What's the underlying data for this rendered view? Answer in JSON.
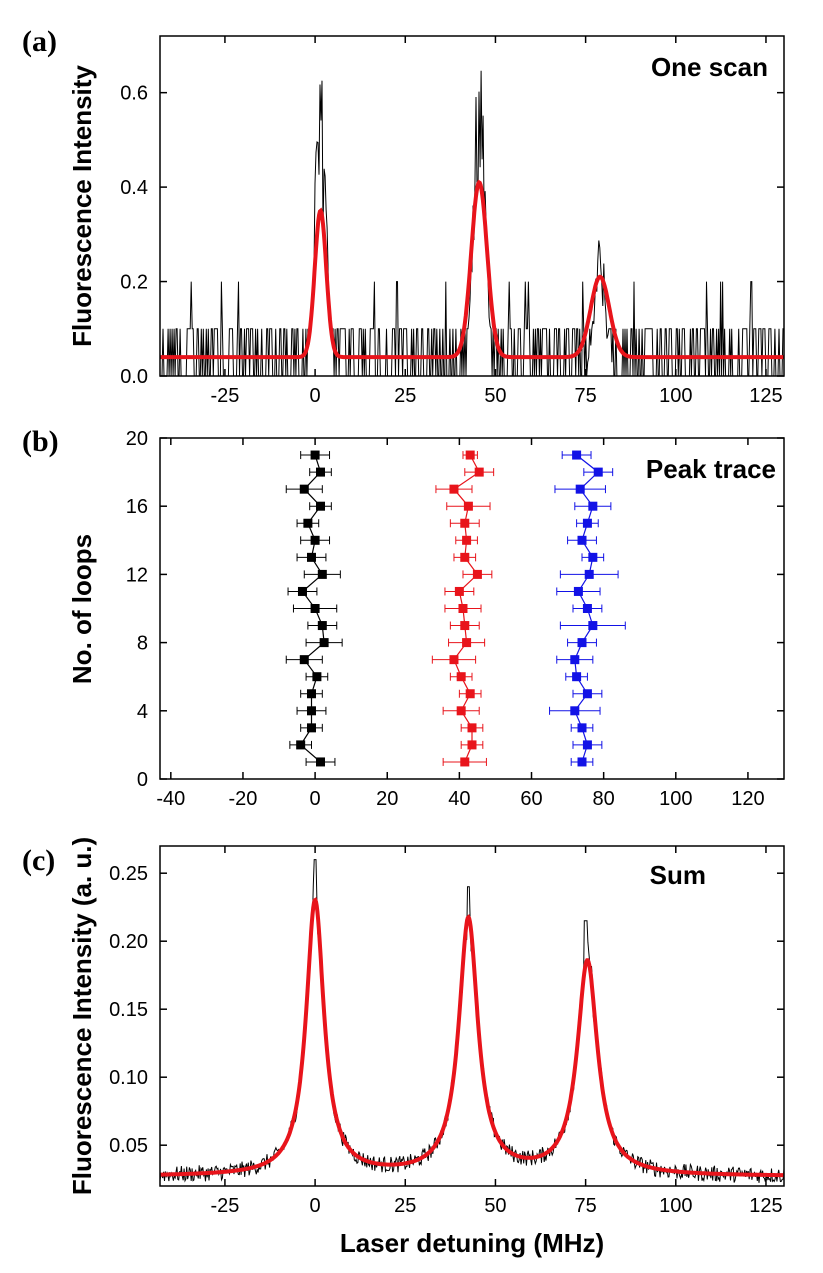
{
  "chart_data": [
    {
      "panel_label": "(a)",
      "type": "line",
      "annotation": "One scan",
      "ylabel": "Fluorescence Intensity",
      "xlim": [
        -43,
        130
      ],
      "ylim": [
        0.0,
        0.72
      ],
      "xticks": [
        -25,
        0,
        25,
        50,
        75,
        100,
        125
      ],
      "yticks": [
        0.0,
        0.2,
        0.4,
        0.6
      ],
      "ytick_labels": [
        "0.0",
        "0.2",
        "0.4",
        "0.6"
      ],
      "baseline": 0.04,
      "noise_levels": [
        0.0,
        0.1
      ],
      "series": [
        {
          "color": "#000000",
          "style": "noisy data",
          "peaks": [
            {
              "center": 1.5,
              "max": 0.65
            },
            {
              "center": 45.5,
              "max": 0.7
            },
            {
              "center": 79,
              "max": 0.3
            }
          ]
        },
        {
          "color": "#e8141b",
          "style": "Gaussian fit",
          "peaks": [
            {
              "center": 1.5,
              "height": 0.35,
              "sigma": 1.6
            },
            {
              "center": 45.5,
              "height": 0.41,
              "sigma": 2.2
            },
            {
              "center": 79,
              "height": 0.21,
              "sigma": 2.6
            }
          ]
        }
      ]
    },
    {
      "panel_label": "(b)",
      "type": "scatter",
      "annotation": "Peak trace",
      "ylabel": "No. of loops",
      "xlim": [
        -43,
        130
      ],
      "ylim": [
        0,
        20
      ],
      "xticks": [
        -40,
        -20,
        0,
        20,
        40,
        60,
        80,
        100,
        120
      ],
      "yticks": [
        0,
        4,
        8,
        12,
        16,
        20
      ],
      "y": [
        1,
        2,
        3,
        4,
        5,
        6,
        7,
        8,
        9,
        10,
        11,
        12,
        13,
        14,
        15,
        16,
        17,
        18,
        19
      ],
      "series": [
        {
          "color": "#000000",
          "x": [
            1.5,
            -4,
            -1,
            -1,
            -1,
            0.5,
            -3,
            2.5,
            2,
            0,
            -3.5,
            2,
            -1,
            0,
            -2,
            1.5,
            -3,
            1.5,
            0
          ],
          "xerr": [
            4,
            3,
            3,
            4,
            3,
            3,
            5,
            5,
            4,
            6,
            4,
            5,
            4,
            4,
            3,
            3,
            5,
            3,
            4
          ]
        },
        {
          "color": "#e8141b",
          "x": [
            41.5,
            43.5,
            43.5,
            40.5,
            43,
            40.5,
            38.5,
            42,
            41.5,
            41,
            40,
            45,
            41.5,
            42,
            41.5,
            42.5,
            38.5,
            45.5,
            43
          ],
          "xerr": [
            6,
            3,
            3,
            5,
            3,
            3,
            6,
            5,
            4,
            5,
            4,
            4,
            3,
            3,
            4,
            6,
            5,
            4,
            2
          ]
        },
        {
          "color": "#1212e6",
          "x": [
            74,
            75.5,
            74,
            72,
            75.5,
            72.5,
            72,
            74,
            77,
            75.5,
            73,
            76,
            77,
            74,
            75.5,
            77,
            73.5,
            78.5,
            72.5
          ],
          "xerr": [
            3,
            4,
            3,
            7,
            4,
            3,
            5,
            4,
            9,
            4,
            6,
            8,
            3,
            4,
            3,
            5,
            7,
            4,
            4
          ]
        }
      ]
    },
    {
      "panel_label": "(c)",
      "type": "line",
      "annotation": "Sum",
      "xlabel": "Laser detuning (MHz)",
      "ylabel": "Fluorescence Intensity (a. u.)",
      "xlim": [
        -43,
        130
      ],
      "ylim": [
        0.02,
        0.27
      ],
      "xticks": [
        -25,
        0,
        25,
        50,
        75,
        100,
        125
      ],
      "yticks": [
        0.05,
        0.1,
        0.15,
        0.2,
        0.25
      ],
      "ytick_labels": [
        "0.05",
        "0.10",
        "0.15",
        "0.20",
        "0.25"
      ],
      "baseline": 0.027,
      "noise_amplitude": 0.006,
      "series": [
        {
          "color": "#000000",
          "style": "noisy data",
          "peaks": [
            {
              "center": 0,
              "max": 0.26
            },
            {
              "center": 42.5,
              "max": 0.24
            },
            {
              "center": 75,
              "max": 0.215
            }
          ]
        },
        {
          "color": "#e8141b",
          "style": "Lorentzian fit",
          "peaks": [
            {
              "center": 0,
              "height": 0.202,
              "hwhm": 3.0
            },
            {
              "center": 42.5,
              "height": 0.188,
              "hwhm": 3.2
            },
            {
              "center": 75.5,
              "height": 0.157,
              "hwhm": 3.4
            }
          ]
        }
      ]
    }
  ]
}
